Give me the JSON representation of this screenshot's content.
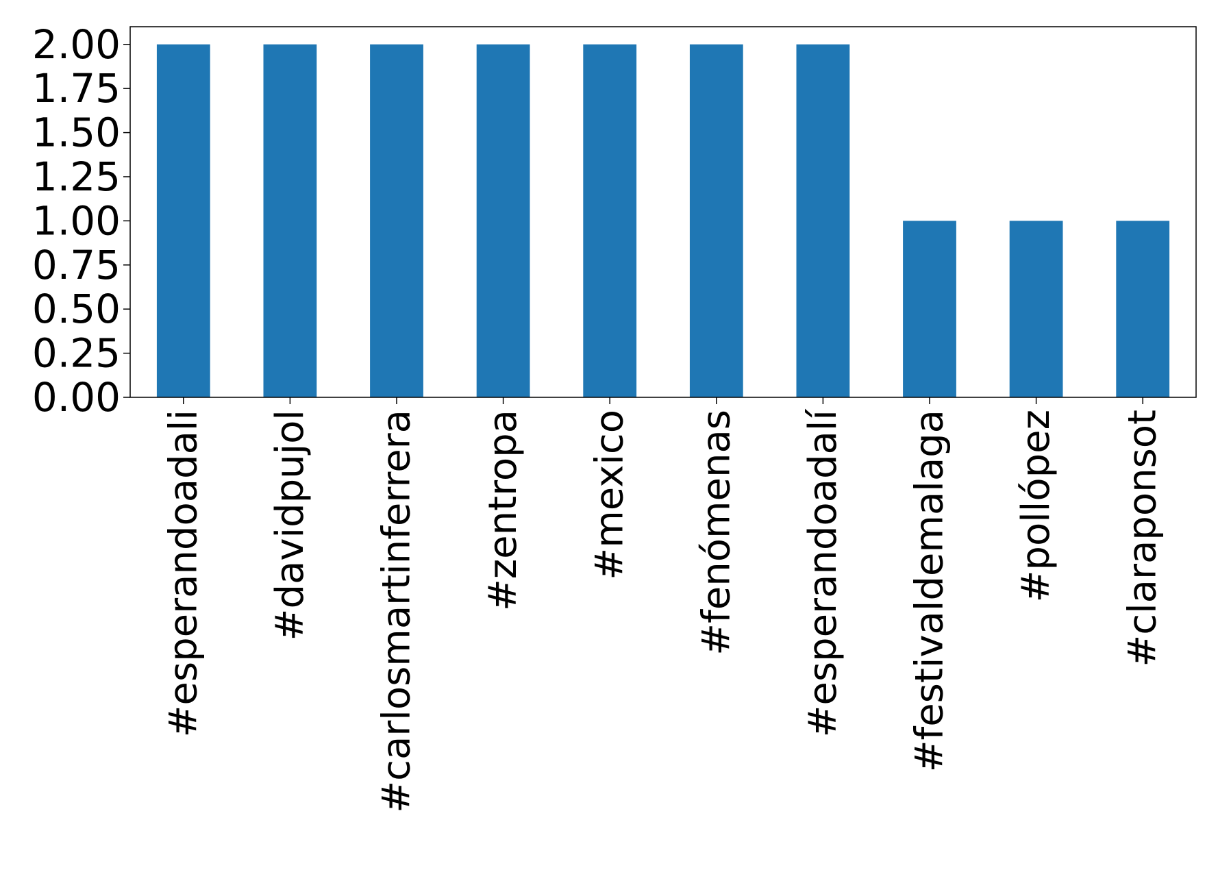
{
  "chart_data": {
    "type": "bar",
    "title": "",
    "xlabel": "",
    "ylabel": "",
    "categories": [
      "#esperandoadali",
      "#davidpujol",
      "#carlosmartinferrera",
      "#zentropa",
      "#mexico",
      "#fenómenas",
      "#esperandoadalí",
      "#festivaldemalaga",
      "#pollópez",
      "#claraponsot"
    ],
    "values": [
      2,
      2,
      2,
      2,
      2,
      2,
      2,
      1,
      1,
      1
    ],
    "ylim": [
      0,
      2.1
    ],
    "yticks": [
      "0.00",
      "0.25",
      "0.50",
      "0.75",
      "1.00",
      "1.25",
      "1.50",
      "1.75",
      "2.00"
    ],
    "grid": false,
    "legend": "none",
    "bar_color": "#1f77b4"
  }
}
